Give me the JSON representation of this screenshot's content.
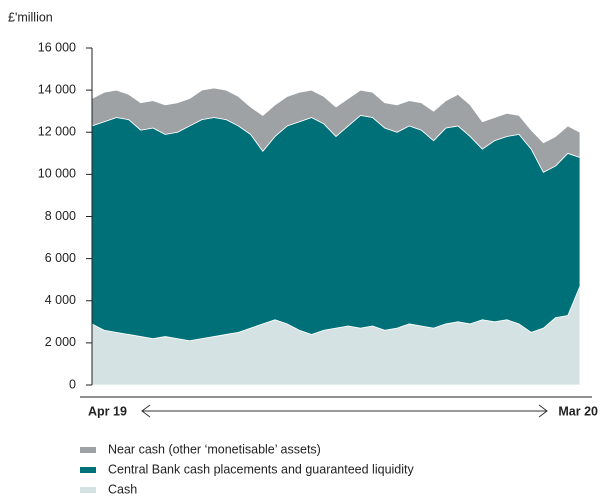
{
  "chart_data": {
    "type": "stacked_area",
    "y_label": "£'million",
    "categories": [
      "Apr 19",
      null,
      null,
      null,
      null,
      null,
      null,
      null,
      null,
      null,
      null,
      null,
      null,
      null,
      null,
      null,
      null,
      null,
      null,
      null,
      null,
      null,
      null,
      null,
      null,
      null,
      null,
      null,
      null,
      null,
      null,
      null,
      null,
      null,
      null,
      null,
      null,
      null,
      null,
      null,
      "Mar 20"
    ],
    "series": [
      {
        "name": "Near cash (other ‘monetisable’ assets)",
        "color": "#9fa2a5",
        "values": [
          1300,
          1400,
          1300,
          1200,
          1300,
          1300,
          1400,
          1400,
          1300,
          1400,
          1400,
          1400,
          1400,
          1300,
          1700,
          1500,
          1400,
          1400,
          1300,
          1300,
          1400,
          1300,
          1200,
          1200,
          1200,
          1300,
          1200,
          1300,
          1400,
          1300,
          1500,
          1500,
          1300,
          1100,
          1100,
          900,
          900,
          1400,
          1400,
          1300,
          1200
        ]
      },
      {
        "name": "Central Bank cash placements and guaranteed liquidity",
        "color": "#007078",
        "values": [
          9400,
          9900,
          10200,
          10200,
          9800,
          10000,
          9600,
          9800,
          10200,
          10400,
          10400,
          10200,
          9800,
          9200,
          8200,
          8700,
          9400,
          9900,
          10300,
          9800,
          9100,
          9500,
          10100,
          9900,
          9600,
          9300,
          9400,
          9300,
          8900,
          9300,
          9300,
          8900,
          8100,
          8600,
          8700,
          9000,
          8700,
          7400,
          7200,
          7700,
          6100
        ]
      },
      {
        "name": "Cash",
        "color": "#d5e2e3",
        "values": [
          2900,
          2600,
          2500,
          2400,
          2300,
          2200,
          2300,
          2200,
          2100,
          2200,
          2300,
          2400,
          2500,
          2700,
          2900,
          3100,
          2900,
          2600,
          2400,
          2600,
          2700,
          2800,
          2700,
          2800,
          2600,
          2700,
          2900,
          2800,
          2700,
          2900,
          3000,
          2900,
          3100,
          3000,
          3100,
          2900,
          2500,
          2700,
          3200,
          3300,
          4700
        ]
      }
    ],
    "ylim": [
      0,
      16000
    ],
    "yticks": [
      0,
      {
        "value": 2000,
        "label": "2 000"
      },
      {
        "value": 4000,
        "label": "4 000"
      },
      {
        "value": 6000,
        "label": "6 000"
      },
      {
        "value": 8000,
        "label": "8 000"
      },
      {
        "value": 10000,
        "label": "10 000"
      },
      {
        "value": 12000,
        "label": "12 000"
      },
      {
        "value": 14000,
        "label": "14 000"
      },
      {
        "value": 16000,
        "label": "16 000"
      }
    ],
    "stack_order": "bottom-up-from-last"
  }
}
